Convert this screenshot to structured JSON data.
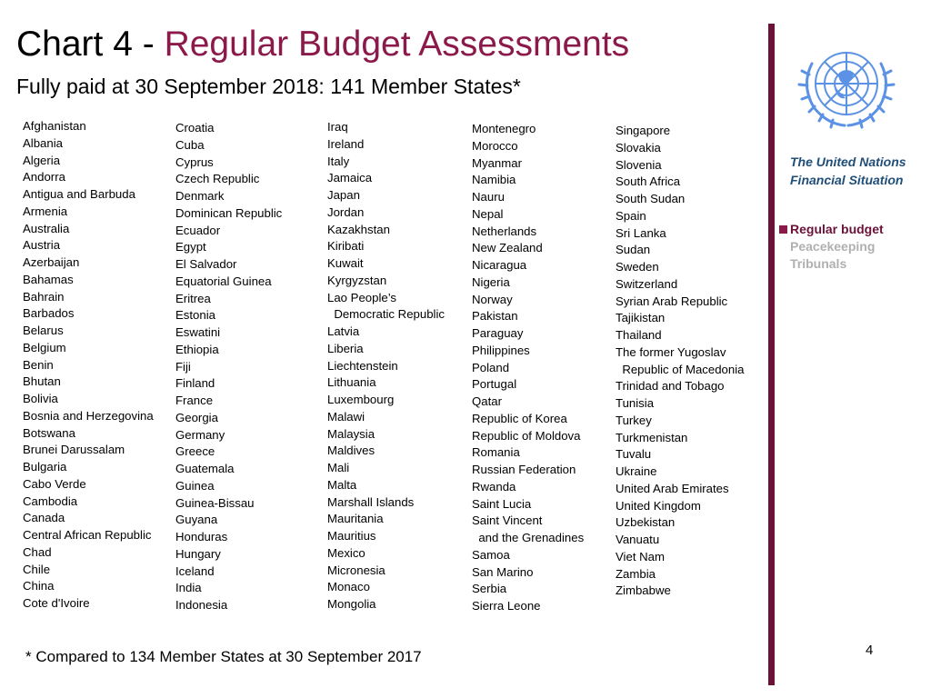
{
  "header": {
    "title_prefix": "Chart 4 - ",
    "title_main": "Regular Budget Assessments",
    "subtitle": "Fully paid at 30 September 2018: 141 Member States*"
  },
  "colors": {
    "accent": "#8b1a4a",
    "bar": "#6b1238",
    "heading": "#1f4e79",
    "inactive": "#b0b0b0"
  },
  "columns": [
    [
      "Afghanistan",
      "Albania",
      "Algeria",
      "Andorra",
      "Antigua and Barbuda",
      "Armenia",
      "Australia",
      "Austria",
      "Azerbaijan",
      "Bahamas",
      "Bahrain",
      "Barbados",
      "Belarus",
      "Belgium",
      "Benin",
      "Bhutan",
      "Bolivia",
      "Bosnia and Herzegovina",
      "Botswana",
      "Brunei Darussalam",
      "Bulgaria",
      "Cabo Verde",
      "Cambodia",
      "Canada",
      "Central African Republic",
      "Chad",
      "Chile",
      "China",
      "Cote d'Ivoire"
    ],
    [
      "Croatia",
      "Cuba",
      "Cyprus",
      "Czech Republic",
      "Denmark",
      "Dominican Republic",
      "Ecuador",
      "Egypt",
      "El Salvador",
      "Equatorial Guinea",
      "Eritrea",
      "Estonia",
      "Eswatini",
      "Ethiopia",
      "Fiji",
      "Finland",
      "France",
      "Georgia",
      "Germany",
      "Greece",
      "Guatemala",
      "Guinea",
      "Guinea-Bissau",
      "Guyana",
      "Honduras",
      "Hungary",
      "Iceland",
      "India",
      "Indonesia"
    ],
    [
      "Iraq",
      "Ireland",
      "Italy",
      "Jamaica",
      "Japan",
      "Jordan",
      "Kazakhstan",
      "Kiribati",
      "Kuwait",
      "Kyrgyzstan",
      "Lao People’s",
      "  Democratic Republic",
      "Latvia",
      "Liberia",
      "Liechtenstein",
      "Lithuania",
      "Luxembourg",
      "Malawi",
      "Malaysia",
      "Maldives",
      "Mali",
      "Malta",
      "Marshall Islands",
      "Mauritania",
      "Mauritius",
      "Mexico",
      "Micronesia",
      "Monaco",
      "Mongolia"
    ],
    [
      "Montenegro",
      "Morocco",
      "Myanmar",
      "Namibia",
      "Nauru",
      "Nepal",
      "Netherlands",
      "New Zealand",
      "Nicaragua",
      "Nigeria",
      "Norway",
      "Pakistan",
      "Paraguay",
      "Philippines",
      "Poland",
      "Portugal",
      "Qatar",
      "Republic of Korea",
      "Republic of Moldova",
      "Romania",
      "Russian Federation",
      "Rwanda",
      "Saint Lucia",
      "Saint Vincent",
      "  and the Grenadines",
      "Samoa",
      "San Marino",
      "Serbia",
      "Sierra Leone"
    ],
    [
      "Singapore",
      "Slovakia",
      "Slovenia",
      "South Africa",
      "South Sudan",
      "Spain",
      "Sri Lanka",
      "Sudan",
      "Sweden",
      "Switzerland",
      "Syrian Arab Republic",
      "Tajikistan",
      "Thailand",
      "The former Yugoslav",
      "  Republic of Macedonia",
      "Trinidad and Tobago",
      "Tunisia",
      "Turkey",
      "Turkmenistan",
      "Tuvalu",
      "Ukraine",
      "United Arab Emirates",
      "United Kingdom",
      "Uzbekistan",
      "Vanuatu",
      "Viet Nam",
      "Zambia",
      "Zimbabwe"
    ]
  ],
  "footnote": "* Compared to 134 Member States at 30 September 2017",
  "page_number": "4",
  "sidebar": {
    "logo": "un-emblem-icon",
    "heading_line1": "The United Nations",
    "heading_line2": "Financial Situation",
    "items": [
      {
        "label": "Regular budget",
        "active": true
      },
      {
        "label": "Peacekeeping",
        "active": false
      },
      {
        "label": "Tribunals",
        "active": false
      }
    ]
  }
}
